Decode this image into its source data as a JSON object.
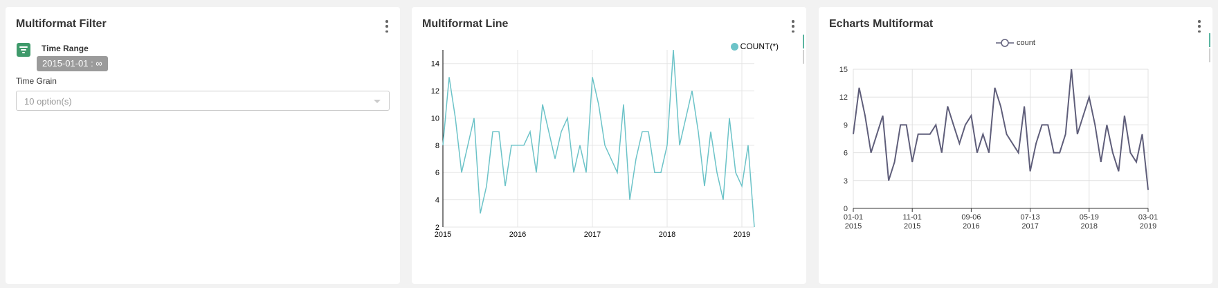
{
  "colors": {
    "teal": "#6cc3c8",
    "slate": "#5f5e7a",
    "filter_green": "#3f9a6b",
    "pill_gray": "#9b9b9b"
  },
  "filter_panel": {
    "title": "Multiformat Filter",
    "time_range_label": "Time Range",
    "time_range_value": "2015-01-01 : ∞",
    "time_grain_label": "Time Grain",
    "time_grain_value": "10 option(s)",
    "filter_icon": "filter-icon",
    "menu_icon": "kebab-menu-icon"
  },
  "line_panel": {
    "title": "Multiformat Line",
    "menu_icon": "kebab-menu-icon"
  },
  "echarts_panel": {
    "title": "Echarts Multiformat",
    "menu_icon": "kebab-menu-icon"
  },
  "chart_data": [
    {
      "type": "line",
      "series": [
        {
          "name": "COUNT(*)",
          "values": [
            8,
            13,
            10,
            6,
            8,
            10,
            3,
            5,
            9,
            9,
            5,
            8,
            8,
            8,
            9,
            6,
            11,
            9,
            7,
            9,
            10,
            6,
            8,
            6,
            13,
            11,
            8,
            7,
            6,
            11,
            4,
            7,
            9,
            9,
            6,
            6,
            8,
            15,
            8,
            10,
            12,
            9,
            5,
            9,
            6,
            4,
            10,
            6,
            5,
            8,
            2
          ]
        }
      ],
      "x_start": "2015-01",
      "x_step": "1 month",
      "x_ticks": [
        "2015",
        "2016",
        "2017",
        "2018",
        "2019"
      ],
      "y_ticks": [
        2,
        4,
        6,
        8,
        10,
        12,
        14
      ],
      "ylim": [
        2,
        15
      ],
      "grid": true,
      "legend": "top-right"
    },
    {
      "type": "line",
      "series": [
        {
          "name": "count",
          "values": [
            8,
            13,
            10,
            6,
            8,
            10,
            3,
            5,
            9,
            9,
            5,
            8,
            8,
            8,
            9,
            6,
            11,
            9,
            7,
            9,
            10,
            6,
            8,
            6,
            13,
            11,
            8,
            7,
            6,
            11,
            4,
            7,
            9,
            9,
            6,
            6,
            8,
            15,
            8,
            10,
            12,
            9,
            5,
            9,
            6,
            4,
            10,
            6,
            5,
            8,
            2
          ]
        }
      ],
      "x_start": "2015-01",
      "x_step": "1 month",
      "x_ticks": [
        {
          "line1": "01-01",
          "line2": "2015"
        },
        {
          "line1": "11-01",
          "line2": "2015"
        },
        {
          "line1": "09-06",
          "line2": "2016"
        },
        {
          "line1": "07-13",
          "line2": "2017"
        },
        {
          "line1": "05-19",
          "line2": "2018"
        },
        {
          "line1": "03-01",
          "line2": "2019"
        }
      ],
      "y_ticks": [
        0,
        3,
        6,
        9,
        12,
        15
      ],
      "ylim": [
        0,
        15
      ],
      "grid": true,
      "legend": "top-center"
    }
  ]
}
